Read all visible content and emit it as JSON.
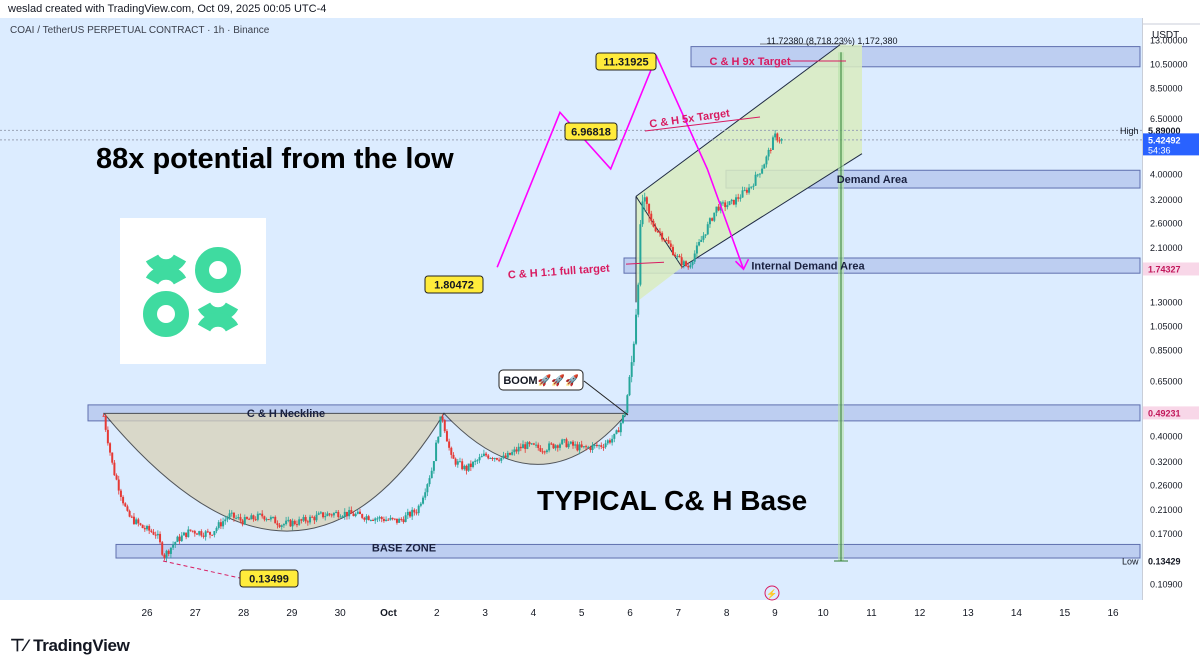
{
  "header": {
    "attribution": "weslad created with TradingView.com, Oct 09, 2025 00:05 UTC-4",
    "symbol": "COAI / TetherUS PERPETUAL CONTRACT · 1h · Binance",
    "currency": "USDT"
  },
  "footer": {
    "brand": "TradingView",
    "brand_icon": "tradingview-logo-icon"
  },
  "colors": {
    "background": "#dcecff",
    "candle_up": "#26a69a",
    "candle_down": "#e53935",
    "zone_fill": "#b8c9ef",
    "label_yellow": "#ffeb3b",
    "target_magenta": "#ff00ff",
    "annotation_red": "#d81b60",
    "cup_fill": "#d9d2b8",
    "channel_fill": "#d9ecc0",
    "logo_green": "#3fdba0"
  },
  "chart_data": {
    "type": "candlestick",
    "title": "",
    "y_scale": "log",
    "x_tick_labels": [
      "26",
      "27",
      "28",
      "29",
      "30",
      "Oct",
      "2",
      "3",
      "4",
      "5",
      "6",
      "7",
      "8",
      "9",
      "10",
      "11",
      "12",
      "13",
      "14",
      "15",
      "16"
    ],
    "y_tick_labels": [
      "13.00000",
      "10.50000",
      "8.50000",
      "6.50000",
      "4.00000",
      "3.20000",
      "2.60000",
      "2.10000",
      "1.30000",
      "1.05000",
      "0.85000",
      "0.65000",
      "0.40000",
      "0.32000",
      "0.26000",
      "0.21000",
      "0.17000",
      "0.10900"
    ],
    "price_badges": [
      {
        "name": "High",
        "value": "5.89000"
      },
      {
        "name": "last",
        "value": "5.42492",
        "countdown": "54:36"
      },
      {
        "name": "internal",
        "value": "1.74327"
      },
      {
        "name": "neckline",
        "value": "0.49231"
      },
      {
        "name": "Low",
        "value": "0.13429"
      }
    ],
    "series": [
      {
        "name": "COAI",
        "points": [
          [
            "Sep 25",
            0.48
          ],
          [
            "Sep 26",
            0.19
          ],
          [
            "Sep 26 PM",
            0.135
          ],
          [
            "Sep 27",
            0.16
          ],
          [
            "Sep 28",
            0.2
          ],
          [
            "Sep 29",
            0.19
          ],
          [
            "Sep 30",
            0.22
          ],
          [
            "Oct 1",
            0.2
          ],
          [
            "Oct 2",
            0.49
          ],
          [
            "Oct 3",
            0.3
          ],
          [
            "Oct 4",
            0.37
          ],
          [
            "Oct 5",
            0.37
          ],
          [
            "Oct 6",
            0.5
          ],
          [
            "Oct 6 PM",
            3.3
          ],
          [
            "Oct 7",
            1.77
          ],
          [
            "Oct 8",
            3.5
          ],
          [
            "Oct 9",
            5.89
          ],
          [
            "Oct 9 00:00",
            5.42
          ]
        ]
      }
    ],
    "annotations": {
      "headline": "88x potential from the low",
      "subhead": "TYPICAL C& H Base",
      "neckline": "C & H Neckline",
      "base_zone": "BASE ZONE",
      "demand": "Demand Area",
      "internal_demand": "Internal Demand Area",
      "target_1": "C & H 1:1 full target",
      "target_5": "C & H 5x Target",
      "target_9": "C & H 9x Target",
      "boom": "BOOM🚀🚀🚀",
      "measure": "11.72380 (8,718.23%) 1,172,380",
      "lbl_low": "0.13499",
      "lbl_t1": "1.80472",
      "lbl_t5": "6.96818",
      "lbl_t9": "11.31925"
    },
    "grid": false,
    "legend": "none"
  }
}
